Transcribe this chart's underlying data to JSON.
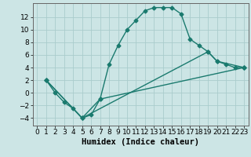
{
  "title": "",
  "xlabel": "Humidex (Indice chaleur)",
  "ylabel": "",
  "background_color": "#cce5e5",
  "grid_color": "#aacccc",
  "line_color": "#1a7a6e",
  "xlim": [
    -0.5,
    23.5
  ],
  "ylim": [
    -5.2,
    14.2
  ],
  "xticks": [
    0,
    1,
    2,
    3,
    4,
    5,
    6,
    7,
    8,
    9,
    10,
    11,
    12,
    13,
    14,
    15,
    16,
    17,
    18,
    19,
    20,
    21,
    22,
    23
  ],
  "yticks": [
    -4,
    -2,
    0,
    2,
    4,
    6,
    8,
    10,
    12
  ],
  "line1_x": [
    1,
    2,
    3,
    4,
    5,
    6,
    7,
    8,
    9,
    10,
    11,
    12,
    13,
    14,
    15,
    16,
    17,
    18,
    19,
    20,
    21,
    22,
    23
  ],
  "line1_y": [
    2,
    0,
    -1.5,
    -2.5,
    -4,
    -3.5,
    -1,
    4.5,
    7.5,
    10,
    11.5,
    13,
    13.5,
    13.5,
    13.5,
    12.5,
    8.5,
    7.5,
    6.5,
    5,
    4.5,
    4,
    4
  ],
  "line2_x": [
    1,
    5,
    7,
    23
  ],
  "line2_y": [
    2,
    -4,
    -1,
    4
  ],
  "line3_x": [
    1,
    5,
    19,
    20,
    23
  ],
  "line3_y": [
    2,
    -4,
    6.5,
    5,
    4
  ],
  "marker": "D",
  "marker_size": 2.5,
  "line_width": 1.0,
  "xlabel_fontsize": 7.5,
  "tick_fontsize": 6.5
}
